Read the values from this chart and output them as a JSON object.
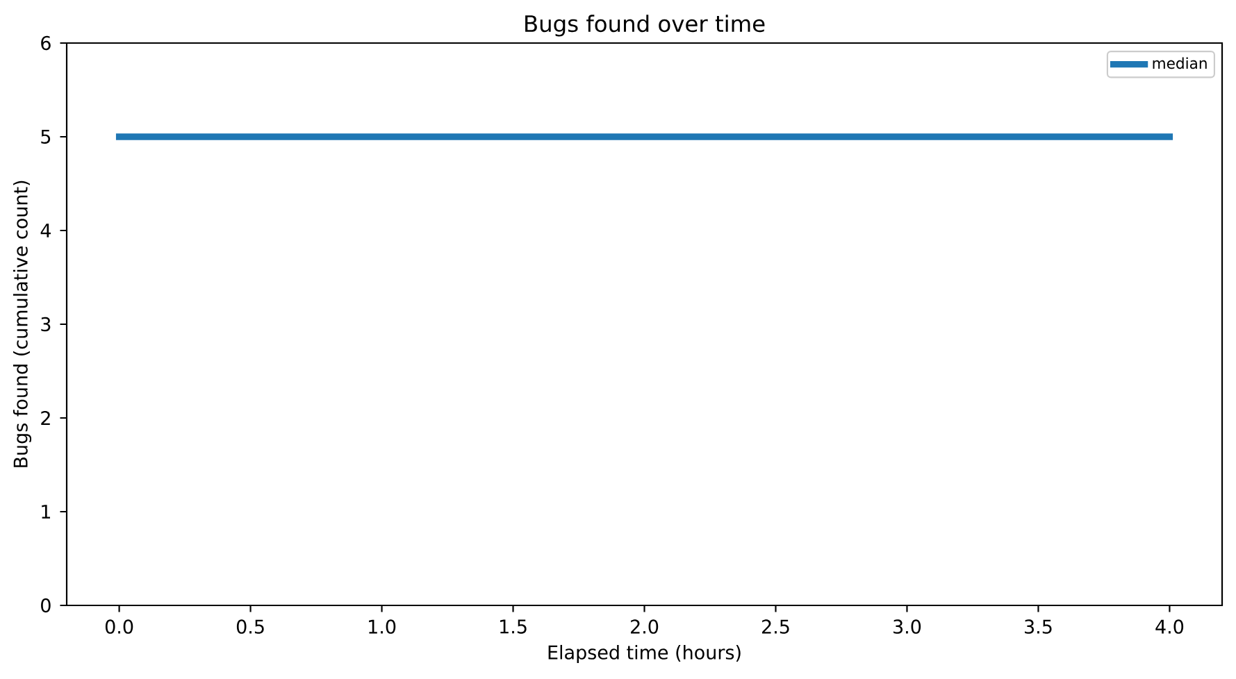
{
  "chart_data": {
    "type": "line",
    "title": "Bugs found over time",
    "xlabel": "Elapsed time (hours)",
    "ylabel": "Bugs found (cumulative count)",
    "x": [
      0,
      4
    ],
    "series": [
      {
        "name": "median",
        "color": "#1f77b4",
        "values": [
          5,
          5
        ]
      }
    ],
    "xlim": [
      -0.2,
      4.2
    ],
    "ylim": [
      0,
      6
    ],
    "xticks": [
      {
        "value": 0,
        "label": "0.0"
      },
      0.5,
      {
        "value": 1,
        "label": "1.0"
      },
      1.5,
      {
        "value": 2,
        "label": "2.0"
      },
      2.5,
      {
        "value": 3,
        "label": "3.0"
      },
      3.5,
      {
        "value": 4,
        "label": "4.0"
      }
    ],
    "yticks": [
      0,
      1,
      2,
      3,
      4,
      5,
      6
    ],
    "legend": "top right",
    "marker": "none",
    "line_style": "solid"
  }
}
